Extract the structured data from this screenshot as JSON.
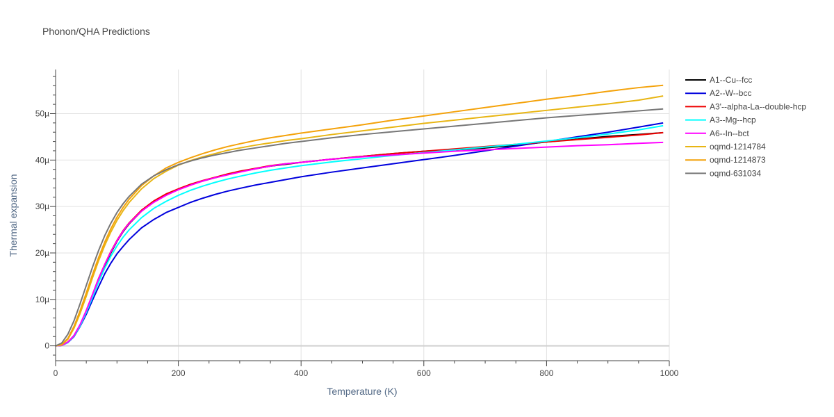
{
  "chart_data": {
    "type": "line",
    "title": "Phonon/QHA Predictions",
    "xlabel": "Temperature (K)",
    "ylabel": "Thermal expansion",
    "xlim": [
      0,
      1000
    ],
    "ylim": [
      -3.2,
      59.5
    ],
    "x_ticks": [
      0,
      200,
      400,
      600,
      800,
      1000
    ],
    "x_tick_labels": [
      "0",
      "200",
      "400",
      "600",
      "800",
      "1000"
    ],
    "y_ticks": [
      0,
      10,
      20,
      30,
      40,
      50
    ],
    "y_tick_labels": [
      "0",
      "10µ",
      "20µ",
      "30µ",
      "40µ",
      "50µ"
    ],
    "grid": true,
    "legend_position": "right",
    "x": [
      0,
      10,
      20,
      30,
      40,
      50,
      60,
      70,
      80,
      90,
      100,
      110,
      120,
      140,
      160,
      180,
      200,
      220,
      240,
      260,
      280,
      300,
      325,
      350,
      375,
      400,
      450,
      500,
      550,
      600,
      650,
      700,
      750,
      800,
      850,
      900,
      950,
      990
    ],
    "series": [
      {
        "name": "A1--Cu--fcc",
        "color": "#000000",
        "values": [
          0,
          0.1,
          0.8,
          2.2,
          4.5,
          7.5,
          10.8,
          14.2,
          17.3,
          20.0,
          22.5,
          24.6,
          26.3,
          29.0,
          31.0,
          32.5,
          33.7,
          34.7,
          35.5,
          36.2,
          36.9,
          37.5,
          38.1,
          38.7,
          39.1,
          39.5,
          40.2,
          40.8,
          41.4,
          41.9,
          42.2,
          42.6,
          43.2,
          43.9,
          44.5,
          45.1,
          45.5,
          45.9
        ]
      },
      {
        "name": "A2--W--bcc",
        "color": "#0000dd",
        "values": [
          0,
          0.1,
          0.7,
          2.0,
          4.2,
          6.8,
          9.8,
          12.7,
          15.5,
          17.8,
          19.8,
          21.4,
          22.9,
          25.4,
          27.2,
          28.7,
          29.8,
          30.9,
          31.8,
          32.6,
          33.3,
          33.9,
          34.6,
          35.2,
          35.8,
          36.4,
          37.4,
          38.3,
          39.2,
          40.1,
          41.0,
          42.0,
          43.0,
          44.0,
          45.0,
          46.0,
          47.1,
          48.0
        ]
      },
      {
        "name": "A3'--alpha-La--double-hcp",
        "color": "#ee0000",
        "values": [
          0,
          0.1,
          0.8,
          2.2,
          4.5,
          7.6,
          11.0,
          14.5,
          17.5,
          20.3,
          22.7,
          24.8,
          26.5,
          29.2,
          31.2,
          32.7,
          33.8,
          34.8,
          35.6,
          36.3,
          37.0,
          37.6,
          38.2,
          38.8,
          39.2,
          39.5,
          40.2,
          40.8,
          41.4,
          41.9,
          42.4,
          42.9,
          43.4,
          43.9,
          44.4,
          44.9,
          45.4,
          45.9
        ]
      },
      {
        "name": "A3--Mg--hcp",
        "color": "#00ffff",
        "values": [
          0,
          0.1,
          0.7,
          2.1,
          4.3,
          7.2,
          10.4,
          13.7,
          16.7,
          19.3,
          21.5,
          23.4,
          25.0,
          27.6,
          29.6,
          31.1,
          32.4,
          33.5,
          34.4,
          35.2,
          35.9,
          36.5,
          37.2,
          37.8,
          38.3,
          38.8,
          39.6,
          40.3,
          41.0,
          41.6,
          42.2,
          42.8,
          43.4,
          44.1,
          44.8,
          45.6,
          46.5,
          47.4
        ]
      },
      {
        "name": "A6--In--bct",
        "color": "#ff00ff",
        "values": [
          0,
          0.1,
          0.8,
          2.2,
          4.6,
          7.6,
          11.0,
          14.4,
          17.5,
          20.2,
          22.6,
          24.7,
          26.4,
          29.0,
          30.9,
          32.4,
          33.6,
          34.6,
          35.5,
          36.2,
          36.8,
          37.4,
          38.1,
          38.7,
          39.2,
          39.5,
          40.2,
          40.7,
          41.1,
          41.5,
          41.9,
          42.2,
          42.5,
          42.8,
          43.1,
          43.3,
          43.6,
          43.8
        ]
      },
      {
        "name": "oqmd-1214784",
        "color": "#e8b513",
        "values": [
          0,
          0.2,
          1.4,
          3.8,
          7.0,
          10.7,
          14.6,
          18.3,
          21.6,
          24.5,
          27.0,
          29.1,
          30.9,
          33.8,
          36.0,
          37.6,
          38.9,
          39.9,
          40.7,
          41.4,
          42.1,
          42.6,
          43.2,
          43.7,
          44.2,
          44.6,
          45.5,
          46.3,
          47.1,
          47.9,
          48.6,
          49.3,
          50.0,
          50.7,
          51.4,
          52.1,
          52.9,
          53.8
        ]
      },
      {
        "name": "oqmd-1214873",
        "color": "#f4a20a",
        "values": [
          0,
          0.3,
          1.6,
          4.2,
          7.6,
          11.4,
          15.3,
          19.0,
          22.3,
          25.2,
          27.7,
          29.8,
          31.6,
          34.5,
          36.6,
          38.3,
          39.5,
          40.5,
          41.4,
          42.2,
          42.9,
          43.5,
          44.2,
          44.8,
          45.3,
          45.8,
          46.7,
          47.6,
          48.6,
          49.5,
          50.4,
          51.3,
          52.2,
          53.1,
          53.9,
          54.8,
          55.6,
          56.1
        ]
      },
      {
        "name": "oqmd-631034",
        "color": "#777777",
        "values": [
          0,
          0.6,
          2.5,
          5.4,
          9.1,
          13.0,
          16.9,
          20.5,
          23.7,
          26.4,
          28.7,
          30.6,
          32.2,
          34.8,
          36.6,
          37.9,
          39.0,
          39.8,
          40.5,
          41.1,
          41.6,
          42.1,
          42.6,
          43.1,
          43.6,
          44.0,
          44.8,
          45.5,
          46.1,
          46.7,
          47.3,
          47.9,
          48.5,
          49.1,
          49.6,
          50.1,
          50.6,
          51.0
        ]
      }
    ]
  }
}
